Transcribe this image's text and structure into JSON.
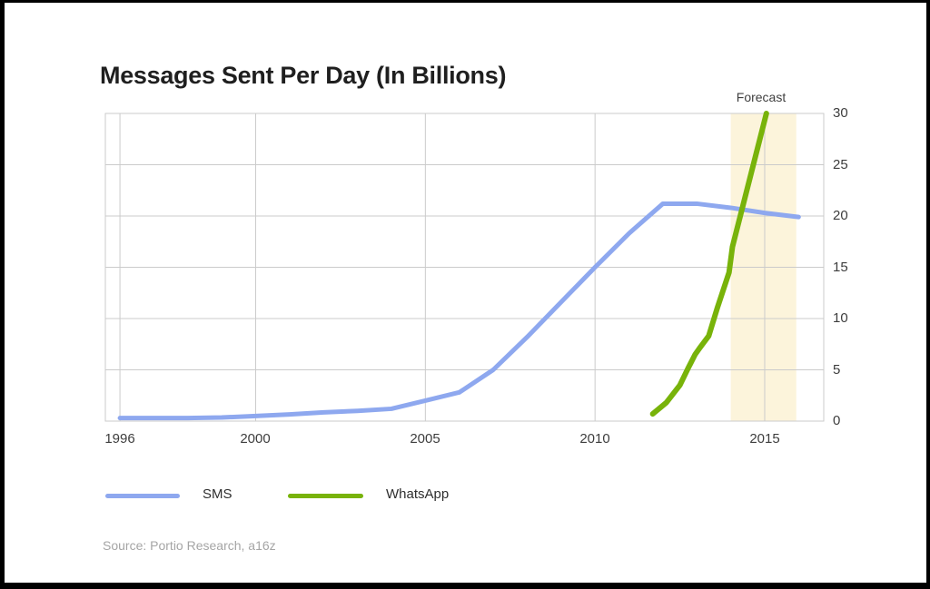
{
  "header": {
    "title": "Messages Sent Per Day (In Billions)"
  },
  "chart_data": {
    "type": "line",
    "title": "Messages Sent Per Day (In Billions)",
    "xlabel": "",
    "ylabel": "",
    "grid": true,
    "grid_color": "#cbcbcb",
    "x_range": [
      1995.57,
      2016.74
    ],
    "y_range": [
      0,
      30
    ],
    "x_tick_values": [
      1996,
      2000,
      2005,
      2010,
      2015
    ],
    "y_tick_values": [
      0,
      5,
      10,
      15,
      20,
      25,
      30
    ],
    "forecast_band": {
      "label": "Forecast",
      "x_from": 2014.0,
      "x_to": 2015.93,
      "color": "#fcf4db"
    },
    "series": [
      {
        "name": "SMS",
        "color": "#8ea8ef",
        "stroke_width": 5,
        "points": [
          [
            1996,
            0.3
          ],
          [
            1997,
            0.3
          ],
          [
            1998,
            0.3
          ],
          [
            1999,
            0.35
          ],
          [
            2000,
            0.5
          ],
          [
            2001,
            0.65
          ],
          [
            2002,
            0.85
          ],
          [
            2003,
            1.0
          ],
          [
            2004,
            1.2
          ],
          [
            2005,
            2.0
          ],
          [
            2006,
            2.8
          ],
          [
            2007,
            5.0
          ],
          [
            2008,
            8.2
          ],
          [
            2009,
            11.6
          ],
          [
            2010,
            15.0
          ],
          [
            2011,
            18.3
          ],
          [
            2012,
            21.2
          ],
          [
            2013,
            21.2
          ],
          [
            2014,
            20.8
          ],
          [
            2015,
            20.3
          ],
          [
            2016,
            19.9
          ]
        ]
      },
      {
        "name": "WhatsApp",
        "color": "#78b30a",
        "stroke_width": 6,
        "points": [
          [
            2011.7,
            0.7
          ],
          [
            2012.1,
            1.8
          ],
          [
            2012.5,
            3.5
          ],
          [
            2012.75,
            5.2
          ],
          [
            2012.95,
            6.5
          ],
          [
            2013.1,
            7.2
          ],
          [
            2013.35,
            8.3
          ],
          [
            2013.6,
            11.0
          ],
          [
            2013.95,
            14.5
          ],
          [
            2014.05,
            17.0
          ],
          [
            2015.05,
            30.0
          ]
        ]
      }
    ],
    "legend_position": "bottom-left"
  },
  "legend": {
    "items": [
      {
        "label": "SMS",
        "color": "#8ea8ef"
      },
      {
        "label": "WhatsApp",
        "color": "#78b30a"
      }
    ]
  },
  "source": {
    "text": "Source: Portio Research, a16z"
  }
}
